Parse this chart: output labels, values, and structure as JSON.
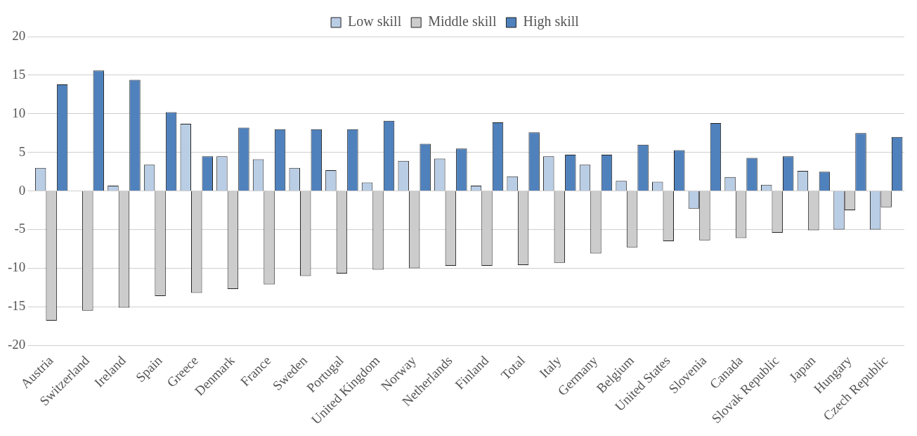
{
  "chart_data": {
    "type": "bar",
    "categories": [
      "Austria",
      "Switzerland",
      "Ireland",
      "Spain",
      "Greece",
      "Denmark",
      "France",
      "Sweden",
      "Portugal",
      "United Kingdom",
      "Norway",
      "Netherlands",
      "Finland",
      "Total",
      "Italy",
      "Germany",
      "Belgium",
      "United States",
      "Slovenia",
      "Canada",
      "Slovak Republic",
      "Japan",
      "Hungary",
      "Czech Republic"
    ],
    "series": [
      {
        "name": "Low skill",
        "color": "#b9cde5",
        "values": [
          3.0,
          0,
          0.7,
          3.4,
          8.7,
          4.5,
          4.1,
          3.0,
          2.7,
          1.1,
          3.9,
          4.2,
          0.7,
          1.9,
          4.5,
          3.4,
          1.3,
          1.2,
          -2.3,
          1.8,
          0.8,
          2.6,
          -5.0,
          -5.0
        ]
      },
      {
        "name": "Middle skill",
        "color": "#cccccc",
        "values": [
          -16.8,
          -15.5,
          -15.1,
          -13.6,
          -13.2,
          -12.7,
          -12.1,
          -11.0,
          -10.7,
          -10.2,
          -10.0,
          -9.7,
          -9.7,
          -9.6,
          -9.3,
          -8.1,
          -7.3,
          -6.5,
          -6.4,
          -6.1,
          -5.4,
          -5.1,
          -2.5,
          -2.1
        ]
      },
      {
        "name": "High skill",
        "color": "#4f81bd",
        "values": [
          13.8,
          15.6,
          14.4,
          10.2,
          4.5,
          8.2,
          8.0,
          8.0,
          8.0,
          9.1,
          6.1,
          5.5,
          8.9,
          7.6,
          4.7,
          4.7,
          6.0,
          5.3,
          8.8,
          4.3,
          4.5,
          2.5,
          7.5,
          7.0
        ]
      }
    ],
    "ylim": [
      -20,
      20
    ],
    "yticks": [
      -20,
      -15,
      -10,
      -5,
      0,
      5,
      10,
      15,
      20
    ],
    "grid": "y",
    "legend": "top"
  }
}
